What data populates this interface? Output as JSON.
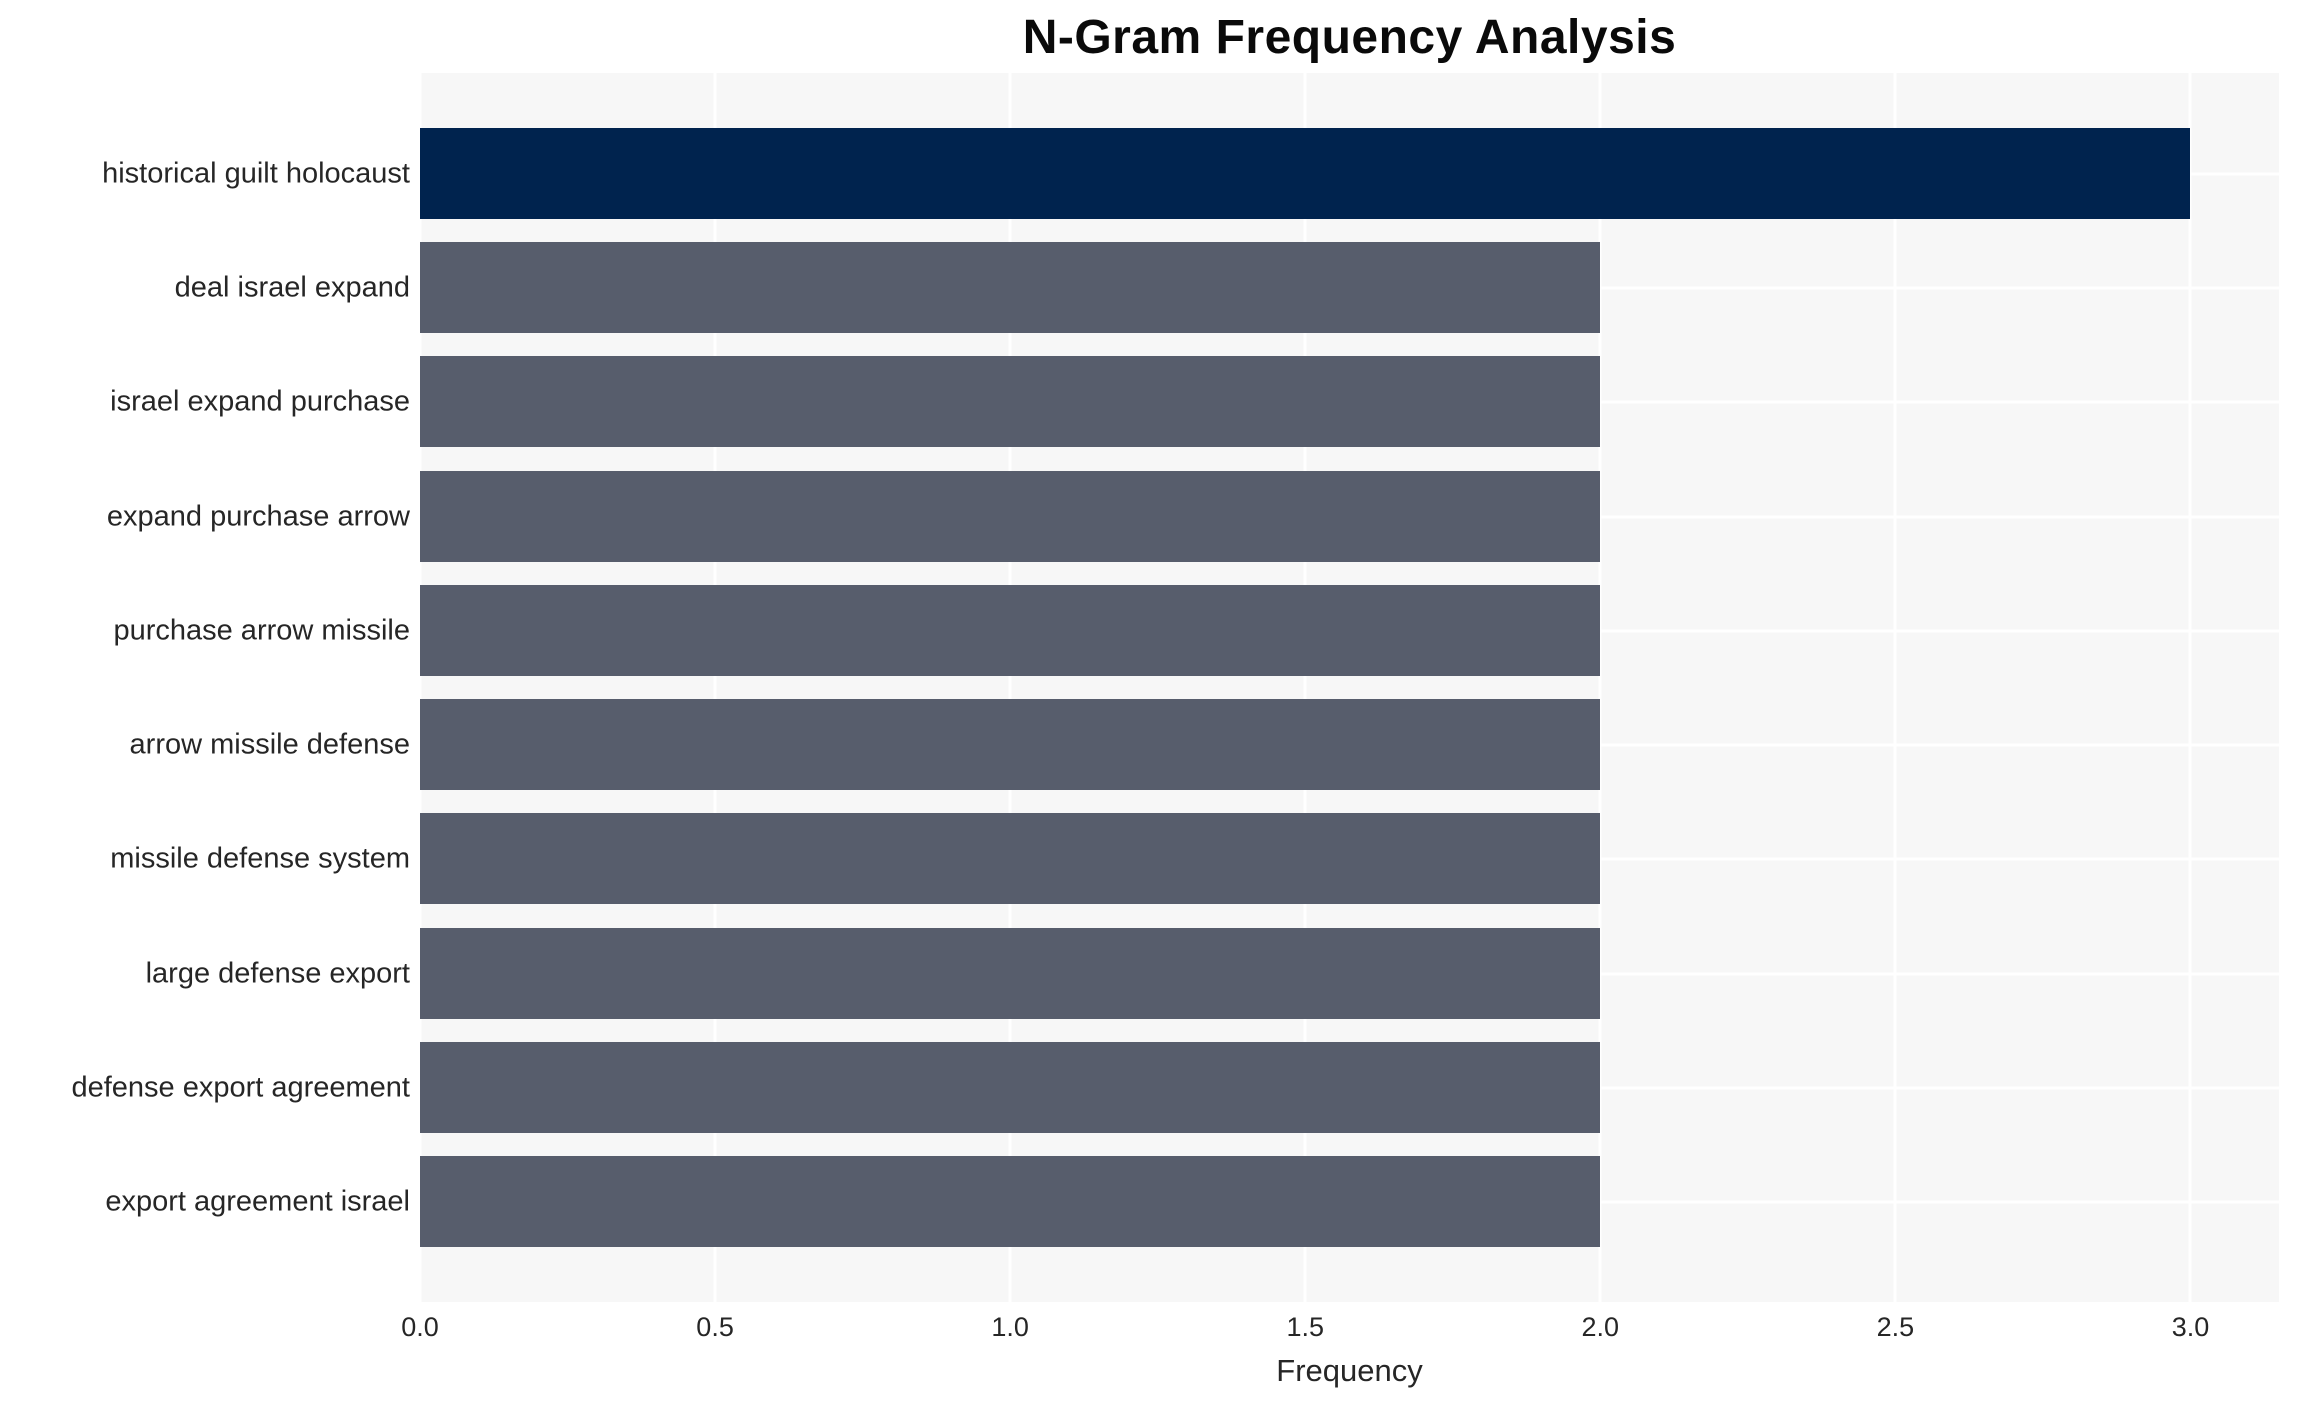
{
  "chart_data": {
    "type": "bar",
    "orientation": "horizontal",
    "title": "N-Gram Frequency Analysis",
    "xlabel": "Frequency",
    "ylabel": "",
    "categories": [
      "historical guilt holocaust",
      "deal israel expand",
      "israel expand purchase",
      "expand purchase arrow",
      "purchase arrow missile",
      "arrow missile defense",
      "missile defense system",
      "large defense export",
      "defense export agreement",
      "export agreement israel"
    ],
    "values": [
      3,
      2,
      2,
      2,
      2,
      2,
      2,
      2,
      2,
      2
    ],
    "xlim": [
      0,
      3.15
    ],
    "xticks": [
      0.0,
      0.5,
      1.0,
      1.5,
      2.0,
      2.5,
      3.0
    ],
    "xtick_labels": [
      "0.0",
      "0.5",
      "1.0",
      "1.5",
      "2.0",
      "2.5",
      "3.0"
    ],
    "grid": true,
    "legend": false,
    "colors": {
      "highlight_bar": "#00234e",
      "bar": "#575d6c",
      "plot_bg": "#f7f7f7",
      "gridline": "#ffffff",
      "tick_text": "#262626",
      "title_text": "#0a0a0a"
    }
  }
}
